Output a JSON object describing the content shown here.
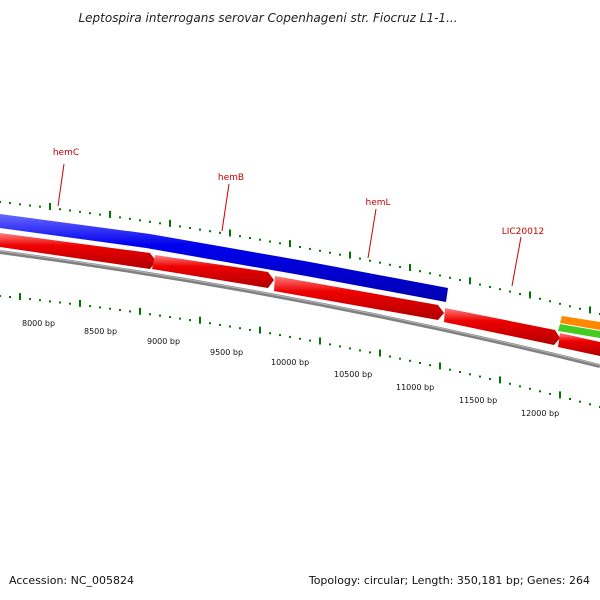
{
  "title": "Leptospira interrogans serovar Copenhageni str. Fiocruz L1-1...",
  "footer": {
    "accession": "Accession: NC_005824",
    "summary": "Topology: circular; Length: 350,181 bp; Genes: 264"
  },
  "colors": {
    "label_red": "#cc0000",
    "forward_gene": "#0000ee",
    "reverse_gene": "#ee0000",
    "tick_green": "#007700",
    "backbone_gray": "#808080",
    "orange_gene": "#ff8800",
    "green_gene": "#44cc22"
  },
  "gene_labels": [
    {
      "name": "hemC"
    },
    {
      "name": "hemB"
    },
    {
      "name": "hemL"
    },
    {
      "name": "LIC20012"
    }
  ],
  "scale_labels": [
    "8000 bp",
    "8500 bp",
    "9000 bp",
    "9500 bp",
    "10000 bp",
    "10500 bp",
    "11000 bp",
    "11500 bp",
    "12000 bp"
  ]
}
